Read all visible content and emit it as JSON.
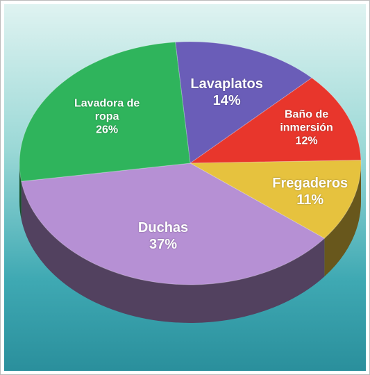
{
  "chart_data": {
    "type": "pie",
    "categories": [
      "Lavaplatos",
      "Baño de inmersión",
      "Fregaderos",
      "Duchas",
      "Lavadora de ropa"
    ],
    "values": [
      14,
      12,
      11,
      37,
      26
    ],
    "value_labels": [
      "14%",
      "12%",
      "11%",
      "37%",
      "26%"
    ],
    "colors": [
      "#6a5db8",
      "#e8362c",
      "#e6c23e",
      "#b690d4",
      "#2fb45c"
    ]
  }
}
